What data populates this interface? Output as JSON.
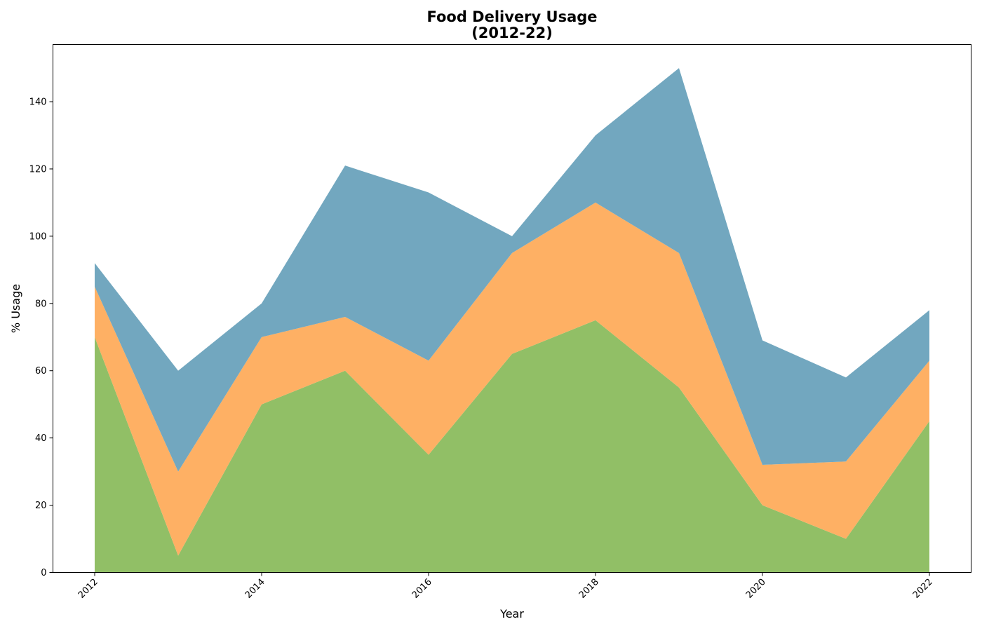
{
  "chart_data": {
    "type": "area",
    "stacked": true,
    "title": "Food Delivery Usage\n(2012-22)",
    "title_lines": [
      "Food Delivery Usage",
      "(2012-22)"
    ],
    "xlabel": "Year",
    "ylabel": "% Usage",
    "x": [
      2012,
      2013,
      2014,
      2015,
      2016,
      2017,
      2018,
      2019,
      2020,
      2021,
      2022
    ],
    "xticks": [
      2012,
      2014,
      2016,
      2018,
      2020,
      2022
    ],
    "yticks": [
      0,
      20,
      40,
      60,
      80,
      100,
      120,
      140
    ],
    "ylim": [
      0,
      157
    ],
    "xlim": [
      2011.5,
      2022.5
    ],
    "grid": false,
    "legend": "none",
    "series": [
      {
        "color": "#91bf66",
        "values": [
          70,
          5,
          50,
          60,
          35,
          65,
          75,
          55,
          20,
          10,
          45
        ]
      },
      {
        "color": "#feb064",
        "values": [
          15,
          25,
          20,
          16,
          28,
          30,
          35,
          40,
          12,
          23,
          18
        ]
      },
      {
        "color": "#72a7bf",
        "values": [
          7,
          30,
          10,
          45,
          50,
          5,
          20,
          55,
          37,
          25,
          15
        ]
      }
    ]
  }
}
